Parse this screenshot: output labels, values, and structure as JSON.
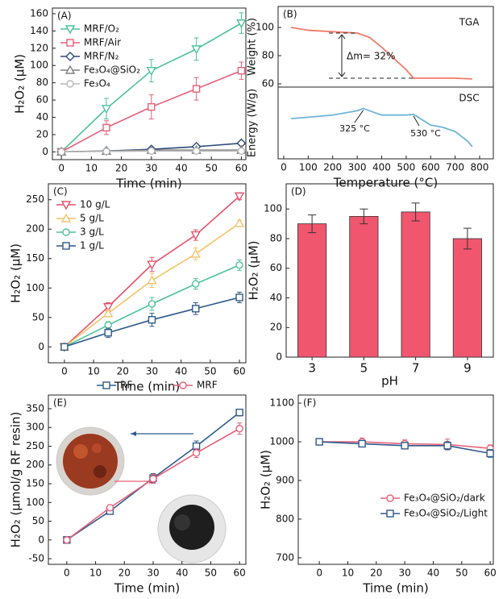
{
  "chart_data": [
    {
      "type": "line",
      "label": "(A)",
      "xlabel": "Time (min)",
      "ylabel": "H₂O₂ (μM)",
      "x": [
        0,
        15,
        30,
        45,
        60
      ],
      "xlim": [
        -3,
        61.5
      ],
      "xticks": [
        0,
        10,
        20,
        30,
        40,
        50,
        60
      ],
      "ylim": [
        -9,
        166.5
      ],
      "yticks": [
        0,
        20,
        40,
        60,
        80,
        100,
        120,
        140,
        160
      ],
      "legend": "upper left",
      "series": [
        {
          "name": "MRF/O₂",
          "color": "#4cc29b",
          "marker": "triangle-down",
          "values": [
            0,
            50,
            94,
            119,
            149
          ],
          "errors": [
            0,
            12,
            13,
            13,
            12
          ]
        },
        {
          "name": "MRF/Air",
          "color": "#e8607a",
          "marker": "square",
          "values": [
            0,
            28,
            52,
            73,
            94
          ],
          "errors": [
            0,
            8,
            14,
            13,
            10
          ]
        },
        {
          "name": "MRF/N₂",
          "color": "#2c4a7a",
          "marker": "diamond",
          "values": [
            0,
            1,
            3,
            6,
            10
          ]
        },
        {
          "name": "Fe₃O₄@SiO₂",
          "color": "#808080",
          "marker": "triangle-up",
          "values": [
            0,
            1,
            2,
            2,
            2
          ]
        },
        {
          "name": "Fe₃O₄",
          "color": "#b8b8b8",
          "marker": "circle",
          "values": [
            0,
            0.5,
            1,
            1,
            1
          ]
        }
      ]
    },
    {
      "type": "line",
      "label": "(B)",
      "ylabel": "Weight (%)",
      "annotations": [
        "TGA",
        "Δm= 32%"
      ],
      "x": [
        30,
        100,
        200,
        300,
        350,
        400,
        450,
        500,
        530,
        600,
        700,
        770
      ],
      "xlim": [
        -23,
        856
      ],
      "ylim": [
        57.7,
        114.9
      ],
      "yticks": [
        60,
        80,
        100
      ],
      "series": [
        {
          "color": "#f07a6a",
          "values": [
            100,
            98,
            97,
            96,
            93,
            86,
            78,
            70,
            64,
            64,
            64,
            63.5
          ]
        }
      ]
    },
    {
      "type": "line",
      "ylabel": "Energy (W/g)",
      "xlabel": "Temperature (°C)",
      "annotations": [
        "DSC",
        "325 °C",
        "530 °C"
      ],
      "x": [
        30,
        100,
        200,
        300,
        325,
        400,
        500,
        530,
        600,
        650,
        700,
        750,
        770
      ],
      "xlim": [
        -23,
        856
      ],
      "xticks": [
        0,
        100,
        200,
        300,
        400,
        500,
        600,
        700,
        800
      ],
      "ylim": [
        0,
        10
      ],
      "series": [
        {
          "color": "#6fb4d8",
          "values": [
            5.6,
            5.8,
            6.1,
            6.7,
            7.0,
            6.1,
            6.1,
            6.2,
            4.7,
            4.4,
            3.8,
            2.5,
            1.7
          ]
        }
      ]
    },
    {
      "type": "line",
      "label": "(C)",
      "xlabel": "Time (min)",
      "ylabel": "H₂O₂ (μM)",
      "x": [
        0,
        15,
        30,
        45,
        60
      ],
      "xlim": [
        -5.5,
        62.2
      ],
      "xticks": [
        0,
        10,
        20,
        30,
        40,
        50,
        60
      ],
      "ylim": [
        -27,
        277
      ],
      "yticks": [
        0,
        50,
        100,
        150,
        200,
        250
      ],
      "legend": "upper left",
      "series": [
        {
          "name": "10 g/L",
          "color": "#e8506a",
          "marker": "triangle-down",
          "values": [
            0,
            68,
            140,
            190,
            256
          ],
          "errors": [
            0,
            7,
            12,
            9,
            6
          ]
        },
        {
          "name": "5 g/L",
          "color": "#f5c36a",
          "marker": "triangle-up",
          "values": [
            0,
            57,
            113,
            158,
            210
          ],
          "errors": [
            0,
            6,
            12,
            10,
            5
          ]
        },
        {
          "name": "3 g/L",
          "color": "#4cc29b",
          "marker": "circle",
          "values": [
            0,
            37,
            73,
            107,
            139
          ],
          "errors": [
            0,
            6,
            11,
            9,
            9
          ]
        },
        {
          "name": "1 g/L",
          "color": "#2f5a8a",
          "marker": "square",
          "values": [
            0,
            24,
            46,
            65,
            84
          ],
          "errors": [
            0,
            8,
            11,
            10,
            9
          ]
        }
      ]
    },
    {
      "type": "bar",
      "label": "(D)",
      "xlabel": "pH",
      "ylabel": "H₂O₂ (μM)",
      "color": "#f0566e",
      "categories": [
        "3",
        "5",
        "7",
        "9"
      ],
      "values": [
        90,
        95,
        98,
        80
      ],
      "errors": [
        6,
        5,
        6,
        7
      ],
      "ylim": [
        0,
        117
      ],
      "yticks": [
        0,
        20,
        40,
        60,
        80,
        100
      ]
    },
    {
      "type": "line",
      "label": "(E)",
      "xlabel": "Time (min)",
      "ylabel": "H₂O₂ (μmol/g RF resin)",
      "x": [
        0,
        15,
        30,
        45,
        60
      ],
      "xlim": [
        -6.4,
        62.2
      ],
      "xticks": [
        0,
        10,
        20,
        30,
        40,
        50,
        60
      ],
      "ylim": [
        -65,
        386.5
      ],
      "yticks": [
        -50,
        0,
        50,
        100,
        150,
        200,
        250,
        300,
        350
      ],
      "legend": "upper center",
      "series": [
        {
          "name": "RF",
          "color": "#2f5a8a",
          "marker": "square",
          "values": [
            0,
            77,
            165,
            250,
            340
          ],
          "errors": [
            0,
            6,
            12,
            14,
            9
          ]
        },
        {
          "name": "MRF",
          "color": "#e8607a",
          "marker": "circle",
          "values": [
            0,
            86,
            163,
            232,
            297
          ],
          "errors": [
            0,
            6,
            12,
            12,
            15
          ]
        }
      ]
    },
    {
      "type": "line",
      "label": "(F)",
      "xlabel": "Time (min)",
      "ylabel": "H₂O₂ (μM)",
      "x": [
        0,
        15,
        30,
        45,
        60
      ],
      "xlim": [
        -7.4,
        61.1
      ],
      "xticks": [
        0,
        10,
        20,
        30,
        40,
        50,
        60
      ],
      "ylim": [
        683,
        1121
      ],
      "yticks": [
        700,
        800,
        900,
        1000,
        1100
      ],
      "legend": "lower right",
      "series": [
        {
          "name": "Fe₃O₄@SiO₂/dark",
          "color": "#e8607a",
          "marker": "circle",
          "values": [
            1000,
            1000,
            995,
            993,
            983
          ],
          "errors": [
            5,
            10,
            10,
            14,
            9
          ]
        },
        {
          "name": "Fe₃O₄@SiO₂/Light",
          "color": "#2f5a8a",
          "marker": "square",
          "values": [
            1000,
            995,
            990,
            990,
            970
          ],
          "errors": [
            5,
            8,
            8,
            10,
            10
          ]
        }
      ]
    }
  ]
}
